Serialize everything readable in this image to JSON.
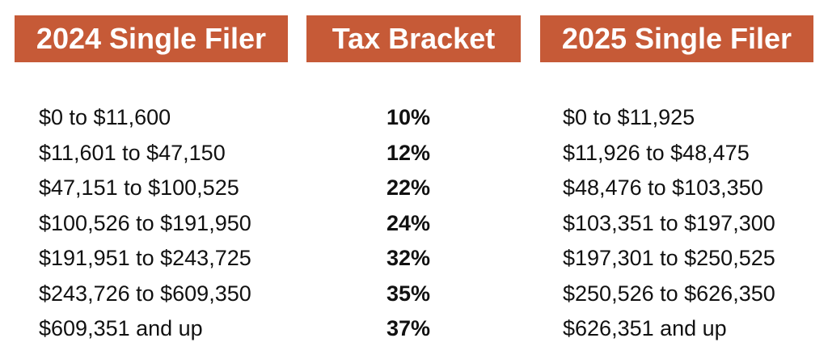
{
  "headers": {
    "single_2024": "2024 Single Filer",
    "tax_bracket": "Tax Bracket",
    "single_2025": "2025 Single Filer"
  },
  "colors": {
    "header_background": "#c65a37",
    "header_text": "#ffffff",
    "body_text": "#111111"
  },
  "rows": [
    {
      "range_2024": "$0 to $11,600",
      "rate": "10%",
      "range_2025": "$0 to $11,925"
    },
    {
      "range_2024": "$11,601 to $47,150",
      "rate": "12%",
      "range_2025": "$11,926 to $48,475"
    },
    {
      "range_2024": "$47,151 to $100,525",
      "rate": "22%",
      "range_2025": "$48,476 to $103,350"
    },
    {
      "range_2024": "$100,526 to $191,950",
      "rate": "24%",
      "range_2025": "$103,351 to $197,300"
    },
    {
      "range_2024": "$191,951 to $243,725",
      "rate": "32%",
      "range_2025": "$197,301 to $250,525"
    },
    {
      "range_2024": "$243,726 to $609,350",
      "rate": "35%",
      "range_2025": "$250,526 to $626,350"
    },
    {
      "range_2024": "$609,351 and up",
      "rate": "37%",
      "range_2025": "$626,351 and up"
    }
  ]
}
